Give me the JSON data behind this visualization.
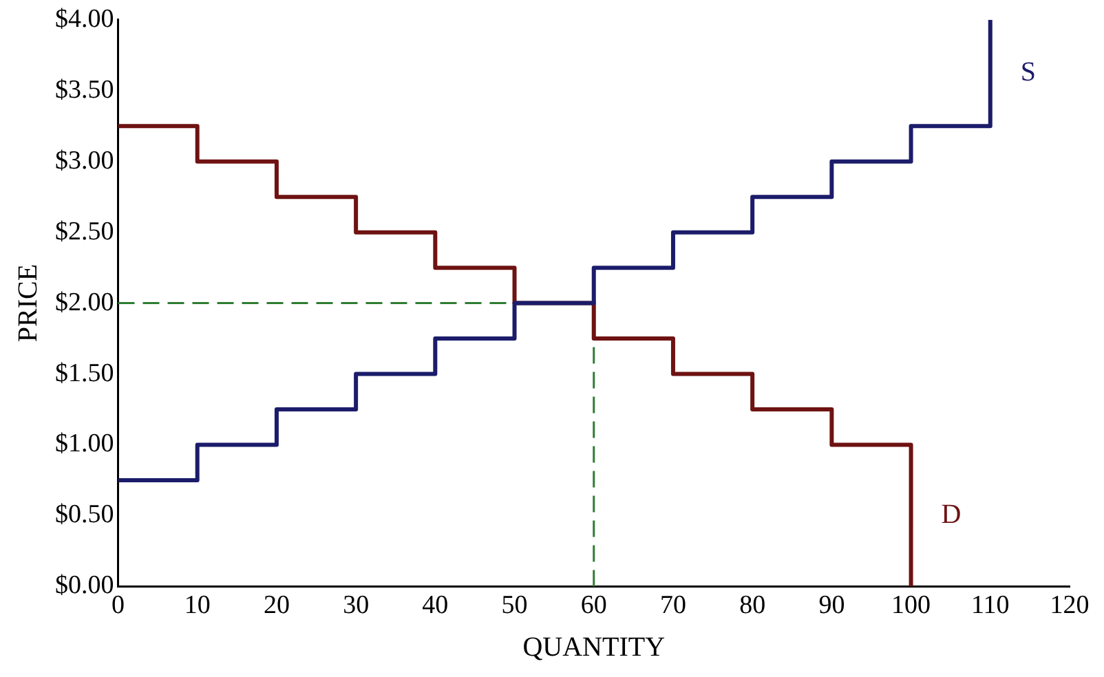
{
  "chart_data": {
    "type": "step",
    "xlabel": "QUANTITY",
    "ylabel": "PRICE",
    "xlim": [
      0,
      120
    ],
    "xticks": [
      0,
      10,
      20,
      30,
      40,
      50,
      60,
      70,
      80,
      90,
      100,
      110,
      120
    ],
    "ylim": [
      0,
      4
    ],
    "yticks": [
      {
        "value": 0,
        "label": "$0.00"
      },
      {
        "value": 0.5,
        "label": "$0.50"
      },
      {
        "value": 1,
        "label": "$1.00"
      },
      {
        "value": 1.5,
        "label": "$1.50"
      },
      {
        "value": 2,
        "label": "$2.00"
      },
      {
        "value": 2.5,
        "label": "$2.50"
      },
      {
        "value": 3,
        "label": "$3.00"
      },
      {
        "value": 3.5,
        "label": "$3.50"
      },
      {
        "value": 4,
        "label": "$4.00"
      }
    ],
    "grid": false,
    "legend": false,
    "line_style": "solid",
    "marker": "none",
    "series": [
      {
        "name": "S",
        "color": "#1c1c6b",
        "x": [
          0,
          10,
          20,
          30,
          40,
          50,
          60,
          70,
          80,
          90,
          100,
          110
        ],
        "values": [
          0.75,
          1,
          1.25,
          1.5,
          1.75,
          2,
          2.25,
          2.5,
          2.75,
          3,
          3.25,
          4
        ]
      },
      {
        "name": "D",
        "color": "#6e1212",
        "x": [
          0,
          10,
          20,
          30,
          40,
          50,
          60,
          70,
          80,
          90,
          100
        ],
        "values": [
          3.25,
          3,
          2.75,
          2.5,
          2.25,
          2,
          1.75,
          1.5,
          1.25,
          1,
          0
        ]
      }
    ],
    "ref_lines": [
      {
        "axis": "y",
        "value": 2,
        "label": null,
        "color": "#2e7d32",
        "line_style": "dashed"
      },
      {
        "axis": "x",
        "value": 60,
        "label": null,
        "color": "#2e7d32",
        "line_style": "dashed"
      }
    ]
  }
}
